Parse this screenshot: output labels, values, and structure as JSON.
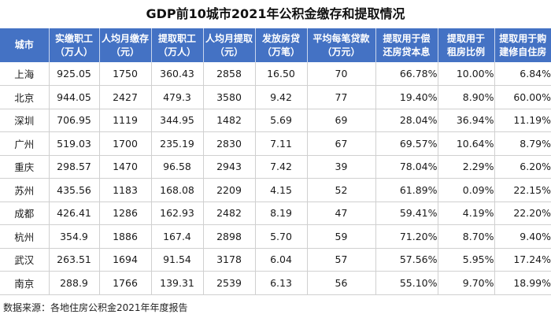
{
  "title": "GDP前10城市2021年公积金缴存和提取情况",
  "source": "数据来源：各地住房公积金2021年年度报告",
  "chart_data": {
    "type": "table",
    "title": "GDP前10城市2021年公积金缴存和提取情况",
    "columns": [
      [
        "城市"
      ],
      [
        "实缴职工",
        "（万人）"
      ],
      [
        "人均月缴存",
        "（元）"
      ],
      [
        "提取职工",
        "（万人）"
      ],
      [
        "人均月提取",
        "（元）"
      ],
      [
        "发放房贷",
        "（万笔）"
      ],
      [
        "平均每笔贷款",
        "（万元）"
      ],
      [
        "提取用于偿",
        "还房贷本息"
      ],
      [
        "提取用于",
        "租房比例"
      ],
      [
        "提取用于购",
        "建修自住房"
      ]
    ],
    "rows": [
      [
        "上海",
        "925.05",
        "1750",
        "360.43",
        "2858",
        "16.50",
        "70",
        "66.78%",
        "10.00%",
        "6.84%"
      ],
      [
        "北京",
        "944.05",
        "2427",
        "479.3",
        "3580",
        "9.42",
        "77",
        "19.40%",
        "8.90%",
        "60.00%"
      ],
      [
        "深圳",
        "706.95",
        "1119",
        "344.95",
        "1482",
        "5.69",
        "69",
        "28.04%",
        "36.94%",
        "11.19%"
      ],
      [
        "广州",
        "519.03",
        "1700",
        "235.19",
        "2830",
        "7.11",
        "67",
        "69.57%",
        "10.64%",
        "8.79%"
      ],
      [
        "重庆",
        "298.57",
        "1470",
        "96.58",
        "2943",
        "7.42",
        "39",
        "78.04%",
        "2.29%",
        "6.20%"
      ],
      [
        "苏州",
        "435.56",
        "1183",
        "168.08",
        "2209",
        "4.15",
        "52",
        "61.89%",
        "0.09%",
        "22.15%"
      ],
      [
        "成都",
        "426.41",
        "1286",
        "162.93",
        "2482",
        "8.19",
        "47",
        "59.41%",
        "4.19%",
        "22.20%"
      ],
      [
        "杭州",
        "354.9",
        "1886",
        "167.4",
        "2898",
        "5.70",
        "59",
        "71.20%",
        "8.70%",
        "9.40%"
      ],
      [
        "武汉",
        "263.51",
        "1694",
        "91.54",
        "3178",
        "6.04",
        "57",
        "57.56%",
        "5.95%",
        "17.24%"
      ],
      [
        "南京",
        "288.9",
        "1766",
        "139.31",
        "2539",
        "6.13",
        "56",
        "55.10%",
        "9.70%",
        "18.99%"
      ]
    ]
  }
}
